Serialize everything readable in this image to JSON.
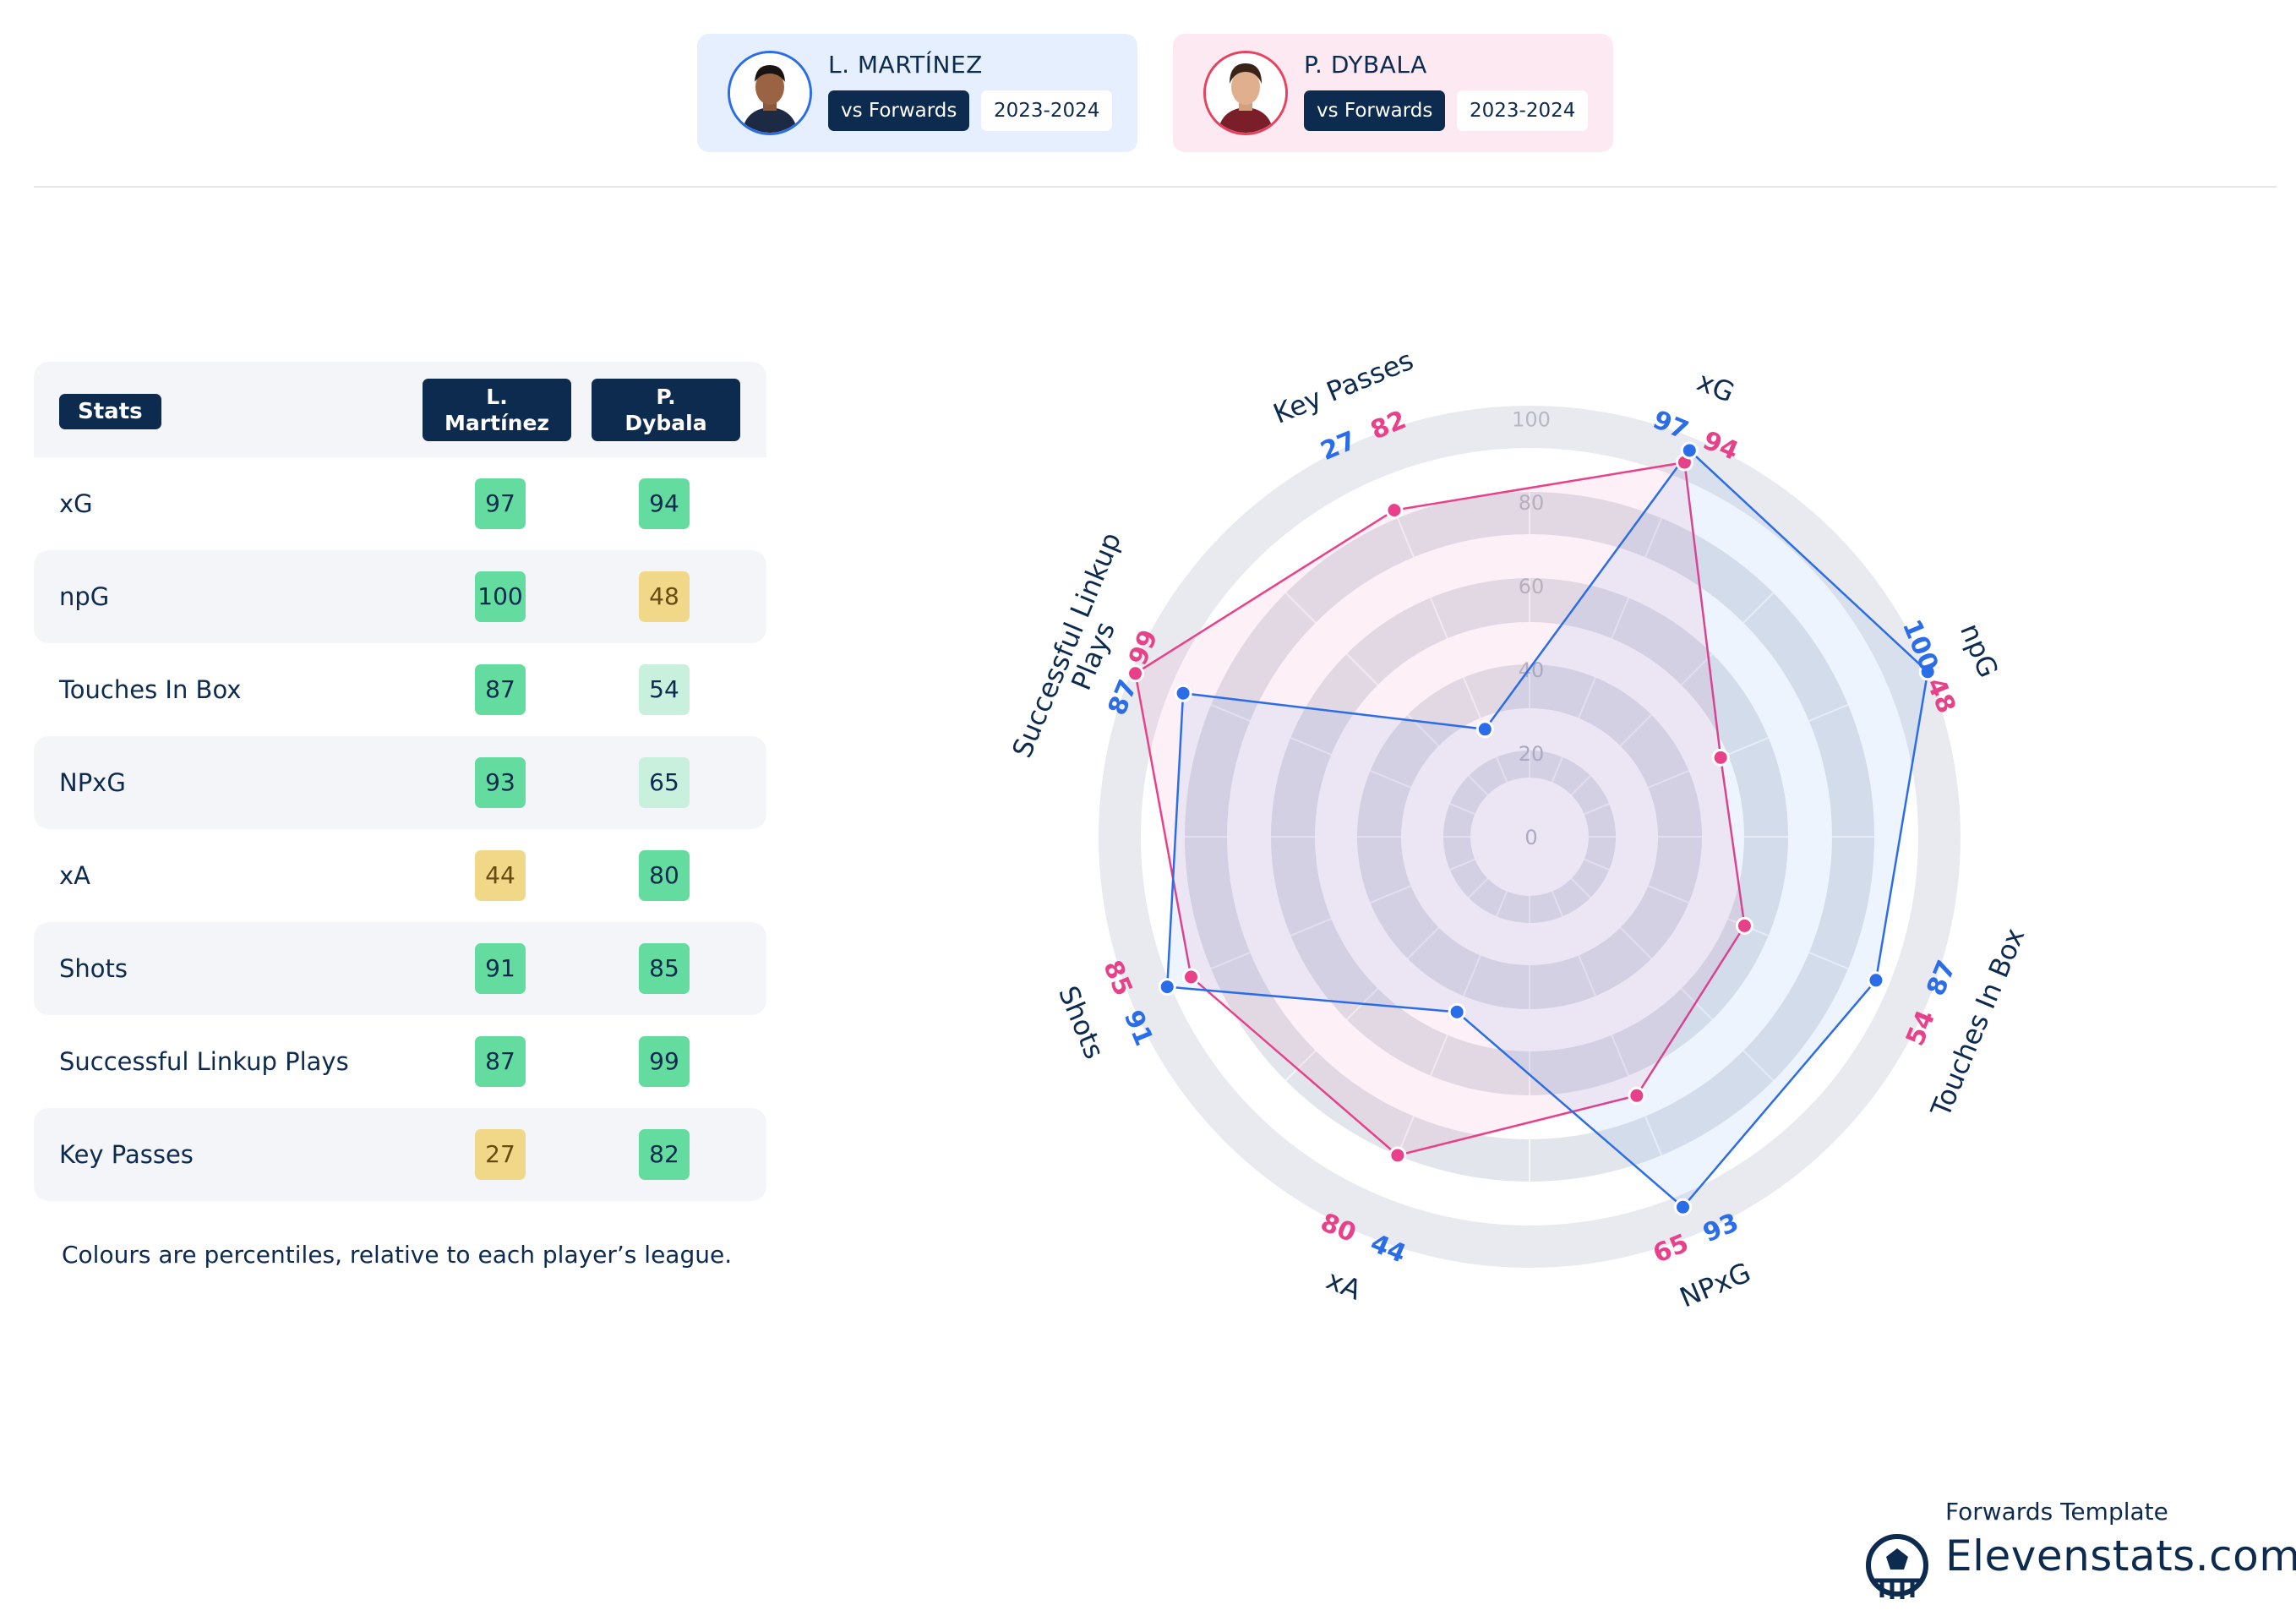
{
  "players": [
    {
      "name": "L. MARTÍNEZ",
      "context": "vs Forwards",
      "season": "2023-2024",
      "color": "#2b6de8"
    },
    {
      "name": "P. DYBALA",
      "context": "vs Forwards",
      "season": "2023-2024",
      "color": "#e8418a"
    }
  ],
  "table": {
    "header_label": "Stats",
    "col1": [
      "L.",
      "Martínez"
    ],
    "col2": [
      "P.",
      "Dybala"
    ],
    "rows": [
      {
        "label": "xG",
        "v1": "97",
        "v2": "94"
      },
      {
        "label": "npG",
        "v1": "100",
        "v2": "48"
      },
      {
        "label": "Touches In Box",
        "v1": "87",
        "v2": "54"
      },
      {
        "label": "NPxG",
        "v1": "93",
        "v2": "65"
      },
      {
        "label": "xA",
        "v1": "44",
        "v2": "80"
      },
      {
        "label": "Shots",
        "v1": "91",
        "v2": "85"
      },
      {
        "label": "Successful Linkup Plays",
        "v1": "87",
        "v2": "99"
      },
      {
        "label": "Key Passes",
        "v1": "27",
        "v2": "82"
      }
    ]
  },
  "footnote": "Colours are percentiles, relative to each player’s league.",
  "branding": {
    "template": "Forwards Template",
    "site": "Elevenstats.com"
  },
  "colors": {
    "navy": "#0d2a4f",
    "badge_high": "#64db9f",
    "badge_mid": "#c9f0dc",
    "badge_low": "#f1d889",
    "series1": "#2b6de8",
    "series2": "#e8418a"
  },
  "chart_data": {
    "type": "radar",
    "axes": [
      "xG",
      "npG",
      "Touches In Box",
      "NPxG",
      "xA",
      "Shots",
      "Successful Linkup Plays",
      "Key Passes"
    ],
    "ticks": [
      "0",
      "20",
      "40",
      "60",
      "80",
      "100"
    ],
    "range": [
      0,
      100
    ],
    "series": [
      {
        "name": "L. MARTÍNEZ",
        "values": [
          97,
          100,
          87,
          93,
          44,
          91,
          87,
          27
        ]
      },
      {
        "name": "P. DYBALA",
        "values": [
          94,
          48,
          54,
          65,
          80,
          85,
          99,
          82
        ]
      }
    ]
  }
}
